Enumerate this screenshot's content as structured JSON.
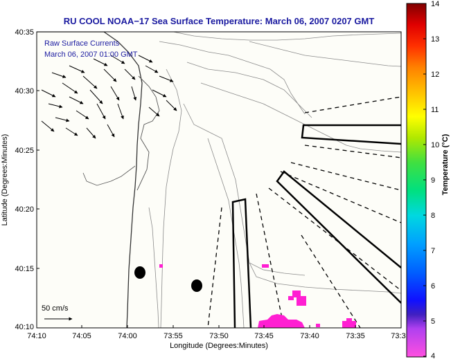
{
  "title": "RU COOL  NOAA−17  Sea Surface Temperature:  March 06, 2007 0207 GMT",
  "overlay": {
    "line1": "Raw Surface Currents",
    "line2": "March 06, 2007 01:00 GMT"
  },
  "scale_label": "50 cm/s",
  "axes": {
    "xlabel": "Longitude (Degrees:Minutes)",
    "ylabel": "Latitude (Degrees:Minutes)",
    "xticks": [
      "74:10",
      "74:05",
      "74:00",
      "73:55",
      "73:50",
      "73:45",
      "73:40",
      "73:35",
      "73:3"
    ],
    "yticks": [
      "40:35",
      "40:30",
      "40:25",
      "40:20",
      "40:15",
      "40:10"
    ]
  },
  "colorbar": {
    "label": "Temperature (°C)",
    "ticks": [
      "14",
      "13",
      "12",
      "11",
      "10",
      "9",
      "8",
      "7",
      "6",
      "5",
      "4"
    ],
    "min": 4,
    "max": 14
  },
  "colors": {
    "title": "#1a1aa0",
    "sst_pixels": "#ff1fd2",
    "map_bg": "#fdfdf8"
  }
}
